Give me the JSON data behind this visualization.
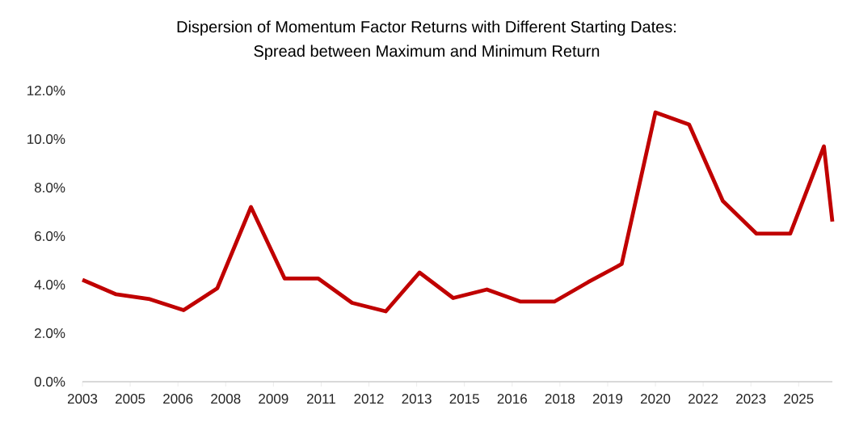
{
  "chart_data": {
    "type": "line",
    "title": "Dispersion of Momentum Factor Returns with Different Starting Dates:",
    "subtitle": "Spread between Maximum and Minimum Return",
    "x": [
      "2003-12",
      "2004-12",
      "2005-12",
      "2006-12",
      "2007-12",
      "2008-12",
      "2009-12",
      "2010-12",
      "2011-12",
      "2012-12",
      "2013-12",
      "2014-12",
      "2015-12",
      "2016-12",
      "2017-12",
      "2018-12",
      "2019-12",
      "2020-12",
      "2021-12",
      "2022-12",
      "2023-12",
      "2024-12",
      "2025-12",
      "2026-03"
    ],
    "series": [
      {
        "color": "#c00000",
        "values": [
          4.2,
          3.6,
          3.4,
          2.95,
          3.85,
          7.2,
          4.25,
          4.25,
          3.25,
          2.9,
          4.5,
          3.45,
          3.8,
          3.3,
          3.3,
          4.1,
          4.85,
          11.1,
          10.6,
          7.45,
          6.1,
          6.1,
          9.7,
          6.6
        ]
      }
    ],
    "xlim": [
      "2003-12",
      "2026-03"
    ],
    "xticks": [
      {
        "value": "2003-12",
        "label": "2003"
      },
      {
        "value": "2005-05",
        "label": "2005"
      },
      {
        "value": "2006-10",
        "label": "2006"
      },
      {
        "value": "2008-03",
        "label": "2008"
      },
      {
        "value": "2009-08",
        "label": "2009"
      },
      {
        "value": "2011-01",
        "label": "2011"
      },
      {
        "value": "2012-06",
        "label": "2012"
      },
      {
        "value": "2013-11",
        "label": "2013"
      },
      {
        "value": "2015-04",
        "label": "2015"
      },
      {
        "value": "2016-09",
        "label": "2016"
      },
      {
        "value": "2018-02",
        "label": "2018"
      },
      {
        "value": "2019-07",
        "label": "2019"
      },
      {
        "value": "2020-12",
        "label": "2020"
      },
      {
        "value": "2022-05",
        "label": "2022"
      },
      {
        "value": "2023-10",
        "label": "2023"
      },
      {
        "value": "2025-03",
        "label": "2025"
      }
    ],
    "ylim": [
      0,
      12
    ],
    "yticks": [
      {
        "value": 0,
        "label": "0.0%"
      },
      {
        "value": 2,
        "label": "2.0%"
      },
      {
        "value": 4,
        "label": "4.0%"
      },
      {
        "value": 6,
        "label": "6.0%"
      },
      {
        "value": 8,
        "label": "8.0%"
      },
      {
        "value": 10,
        "label": "10.0%"
      },
      {
        "value": 12,
        "label": "12.0%"
      }
    ],
    "grid": false,
    "legend": false,
    "marker": "none",
    "line_style": "solid"
  }
}
